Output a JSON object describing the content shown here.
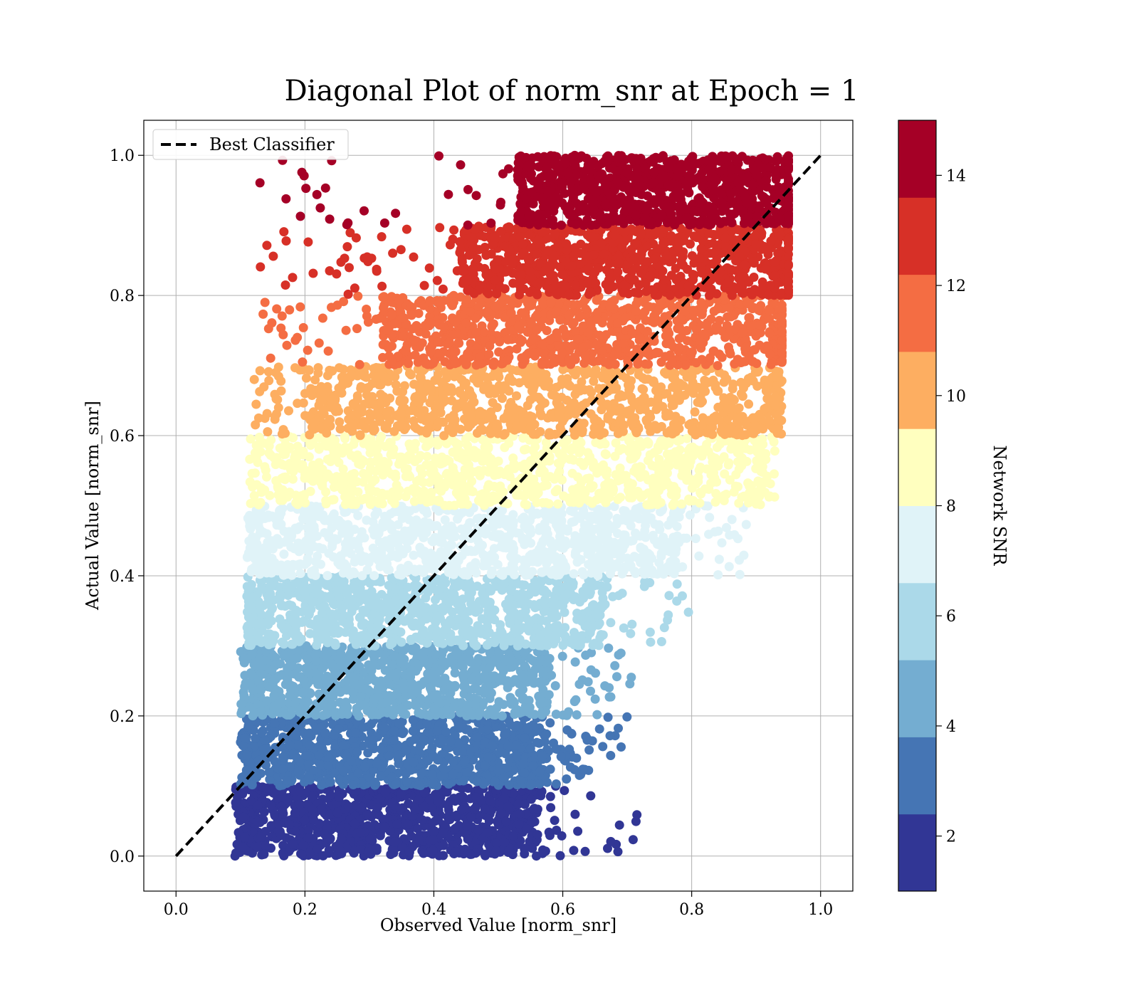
{
  "chart_data": {
    "type": "scatter",
    "title": "Diagonal Plot of norm_snr at Epoch = 1",
    "xlabel": "Observed Value [norm_snr]",
    "ylabel": "Actual Value [norm_snr]",
    "xlim": [
      -0.05,
      1.05
    ],
    "ylim": [
      -0.05,
      1.05
    ],
    "xticks": [
      "0.0",
      "0.2",
      "0.4",
      "0.6",
      "0.8",
      "1.0"
    ],
    "yticks": [
      "0.0",
      "0.2",
      "0.4",
      "0.6",
      "0.8",
      "1.0"
    ],
    "grid": true,
    "legend": {
      "position": "top-left",
      "entries": [
        "Best Classifier"
      ]
    },
    "reference_line": {
      "name": "Best Classifier",
      "x": [
        0.0,
        1.0
      ],
      "y": [
        0.0,
        1.0
      ],
      "style": "dashed",
      "color": "#000000"
    },
    "colorbar": {
      "label": "Network SNR",
      "range": [
        1,
        15
      ],
      "ticks": [
        "2",
        "4",
        "6",
        "8",
        "10",
        "12",
        "14"
      ],
      "colors": [
        "#313695",
        "#4575b4",
        "#74add1",
        "#abd9e9",
        "#e0f3f8",
        "#ffffbf",
        "#fee090",
        "#fdae61",
        "#f46d43",
        "#d73027",
        "#a50026"
      ]
    },
    "bands": [
      {
        "y_range": [
          0.0,
          0.1
        ],
        "snr": 1.6,
        "color": "#313695",
        "x_core": [
          0.11,
          0.56
        ],
        "x_min": 0.09,
        "x_max": 0.72
      },
      {
        "y_range": [
          0.1,
          0.2
        ],
        "snr": 2.9,
        "color": "#4575b4",
        "x_core": [
          0.11,
          0.58
        ],
        "x_min": 0.1,
        "x_max": 0.7
      },
      {
        "y_range": [
          0.2,
          0.3
        ],
        "snr": 4.3,
        "color": "#74add1",
        "x_core": [
          0.12,
          0.58
        ],
        "x_min": 0.1,
        "x_max": 0.72
      },
      {
        "y_range": [
          0.3,
          0.4
        ],
        "snr": 5.7,
        "color": "#abd9e9",
        "x_core": [
          0.12,
          0.66
        ],
        "x_min": 0.11,
        "x_max": 0.8
      },
      {
        "y_range": [
          0.4,
          0.5
        ],
        "snr": 7.1,
        "color": "#e0f3f8",
        "x_core": [
          0.13,
          0.78
        ],
        "x_min": 0.11,
        "x_max": 0.89
      },
      {
        "y_range": [
          0.5,
          0.6
        ],
        "snr": 8.6,
        "color": "#ffffbf",
        "x_core": [
          0.15,
          0.9
        ],
        "x_min": 0.11,
        "x_max": 0.93
      },
      {
        "y_range": [
          0.6,
          0.7
        ],
        "snr": 10.0,
        "color": "#fdae61",
        "x_core": [
          0.2,
          0.93
        ],
        "x_min": 0.12,
        "x_max": 0.94
      },
      {
        "y_range": [
          0.7,
          0.8
        ],
        "snr": 11.4,
        "color": "#f46d43",
        "x_core": [
          0.32,
          0.94
        ],
        "x_min": 0.13,
        "x_max": 0.94
      },
      {
        "y_range": [
          0.8,
          0.9
        ],
        "snr": 12.9,
        "color": "#d73027",
        "x_core": [
          0.44,
          0.95
        ],
        "x_min": 0.13,
        "x_max": 0.95
      },
      {
        "y_range": [
          0.9,
          1.0
        ],
        "snr": 14.3,
        "color": "#a50026",
        "x_core": [
          0.53,
          0.95
        ],
        "x_min": 0.13,
        "x_max": 0.95
      }
    ]
  }
}
